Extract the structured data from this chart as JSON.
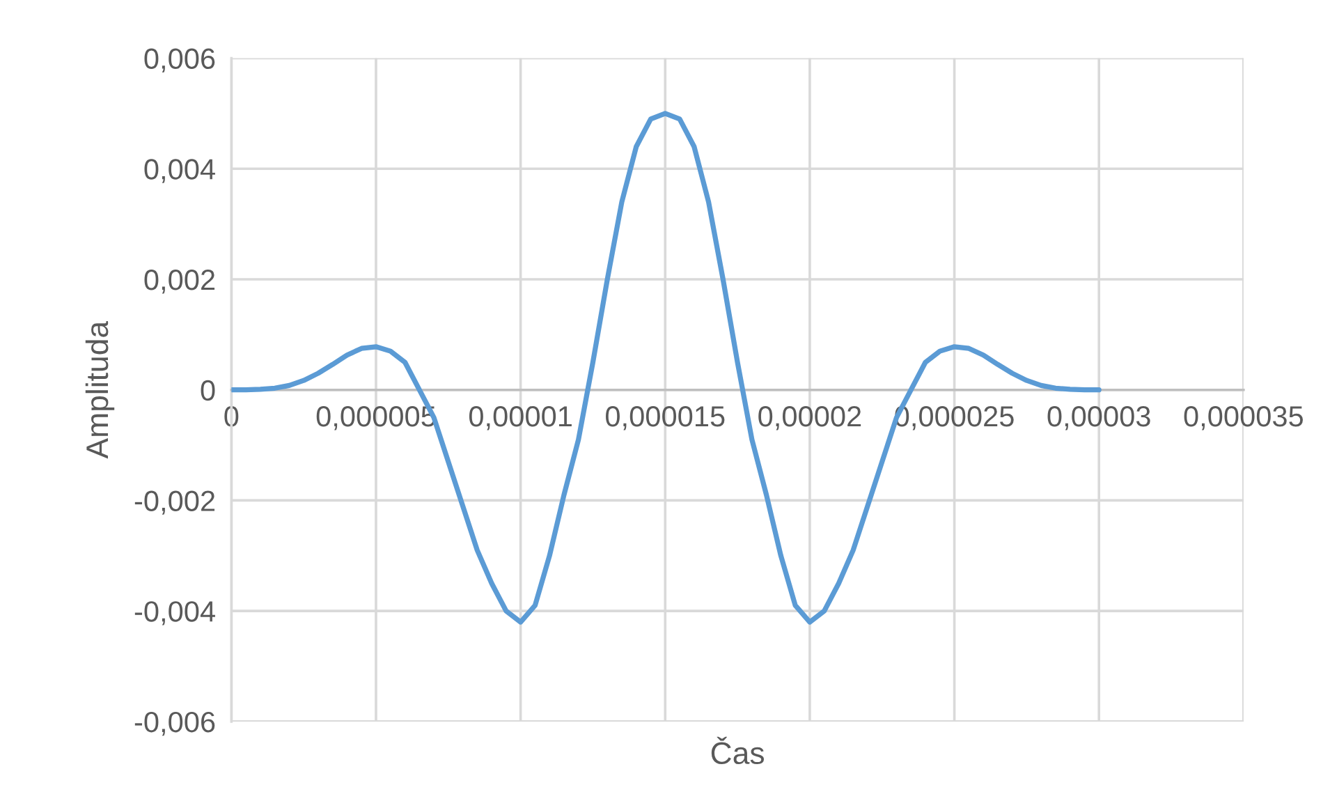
{
  "chart_data": {
    "type": "line",
    "xlabel": "Čas",
    "ylabel": "Amplituda",
    "x": [
      0,
      5e-07,
      1e-06,
      1.5e-06,
      2e-06,
      2.5e-06,
      3e-06,
      3.5e-06,
      4e-06,
      4.5e-06,
      5e-06,
      5.5e-06,
      6e-06,
      6.5e-06,
      7e-06,
      7.5e-06,
      8e-06,
      8.5e-06,
      9e-06,
      9.5e-06,
      1e-05,
      1.05e-05,
      1.1e-05,
      1.15e-05,
      1.2e-05,
      1.25e-05,
      1.3e-05,
      1.35e-05,
      1.4e-05,
      1.45e-05,
      1.5e-05,
      1.55e-05,
      1.6e-05,
      1.65e-05,
      1.7e-05,
      1.75e-05,
      1.8e-05,
      1.85e-05,
      1.9e-05,
      1.95e-05,
      2e-05,
      2.05e-05,
      2.1e-05,
      2.15e-05,
      2.2e-05,
      2.25e-05,
      2.3e-05,
      2.35e-05,
      2.4e-05,
      2.45e-05,
      2.5e-05,
      2.55e-05,
      2.6e-05,
      2.65e-05,
      2.7e-05,
      2.75e-05,
      2.8e-05,
      2.85e-05,
      2.9e-05,
      2.95e-05,
      3e-05
    ],
    "series": [
      {
        "color": "#5b9bd5",
        "values": [
          0,
          0,
          1e-05,
          3e-05,
          8e-05,
          0.00017,
          0.0003,
          0.00046,
          0.00063,
          0.00075,
          0.00078,
          0.0007,
          0.0005,
          0,
          -0.0005,
          -0.0013,
          -0.0021,
          -0.0029,
          -0.0035,
          -0.004,
          -0.0042,
          -0.0039,
          -0.003,
          -0.0019,
          -0.0009,
          0.0005,
          0.002,
          0.0034,
          0.0044,
          0.0049,
          0.005,
          0.0049,
          0.0044,
          0.0034,
          0.002,
          0.0005,
          -0.0009,
          -0.0019,
          -0.003,
          -0.0039,
          -0.0042,
          -0.004,
          -0.0035,
          -0.0029,
          -0.0021,
          -0.0013,
          -0.0005,
          0,
          0.0005,
          0.0007,
          0.00078,
          0.00075,
          0.00063,
          0.00046,
          0.0003,
          0.00017,
          8e-05,
          3e-05,
          1e-05,
          0,
          0
        ]
      }
    ],
    "xlim": [
      0,
      3.5e-05
    ],
    "xticks": [
      0,
      {
        "value": 5e-06,
        "label": "0,000005"
      },
      {
        "value": 1e-05,
        "label": "0,00001"
      },
      {
        "value": 1.5e-05,
        "label": "0,000015"
      },
      {
        "value": 2e-05,
        "label": "0,00002"
      },
      {
        "value": 2.5e-05,
        "label": "0,000025"
      },
      {
        "value": 3e-05,
        "label": "0,00003"
      },
      {
        "value": 3.5e-05,
        "label": "0,000035"
      }
    ],
    "ylim": [
      -0.006,
      0.006
    ],
    "yticks": [
      {
        "value": -0.006,
        "label": "-0,006"
      },
      {
        "value": -0.004,
        "label": "-0,004"
      },
      {
        "value": -0.002,
        "label": "-0,002"
      },
      0,
      {
        "value": 0.002,
        "label": "0,002"
      },
      {
        "value": 0.004,
        "label": "0,004"
      },
      {
        "value": 0.006,
        "label": "0,006"
      }
    ],
    "grid": true,
    "marker": "none",
    "line_style": "solid",
    "legend": false
  }
}
